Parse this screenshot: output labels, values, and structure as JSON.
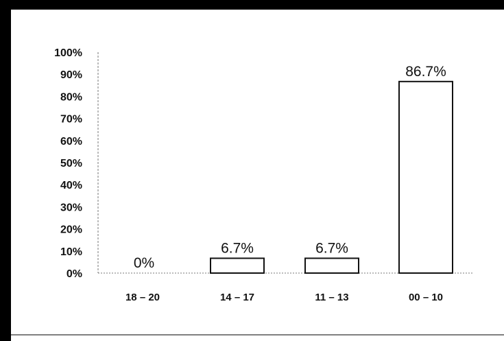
{
  "chart_data": {
    "type": "bar",
    "categories": [
      "18 – 20",
      "14 – 17",
      "11 – 13",
      "00 – 10"
    ],
    "values": [
      0,
      6.7,
      6.7,
      86.7
    ],
    "data_labels": [
      "0%",
      "6.7%",
      "6.7%",
      "86.7%"
    ],
    "y_ticks": [
      "0%",
      "10%",
      "20%",
      "30%",
      "40%",
      "50%",
      "60%",
      "70%",
      "80%",
      "90%",
      "100%"
    ],
    "ylim": [
      0,
      100
    ],
    "title": "",
    "xlabel": "",
    "ylabel": "",
    "grid": false,
    "legend": "none",
    "colors": {
      "bar_fill": "#ffffff",
      "bar_stroke": "#111111",
      "frame": "#000000"
    }
  }
}
